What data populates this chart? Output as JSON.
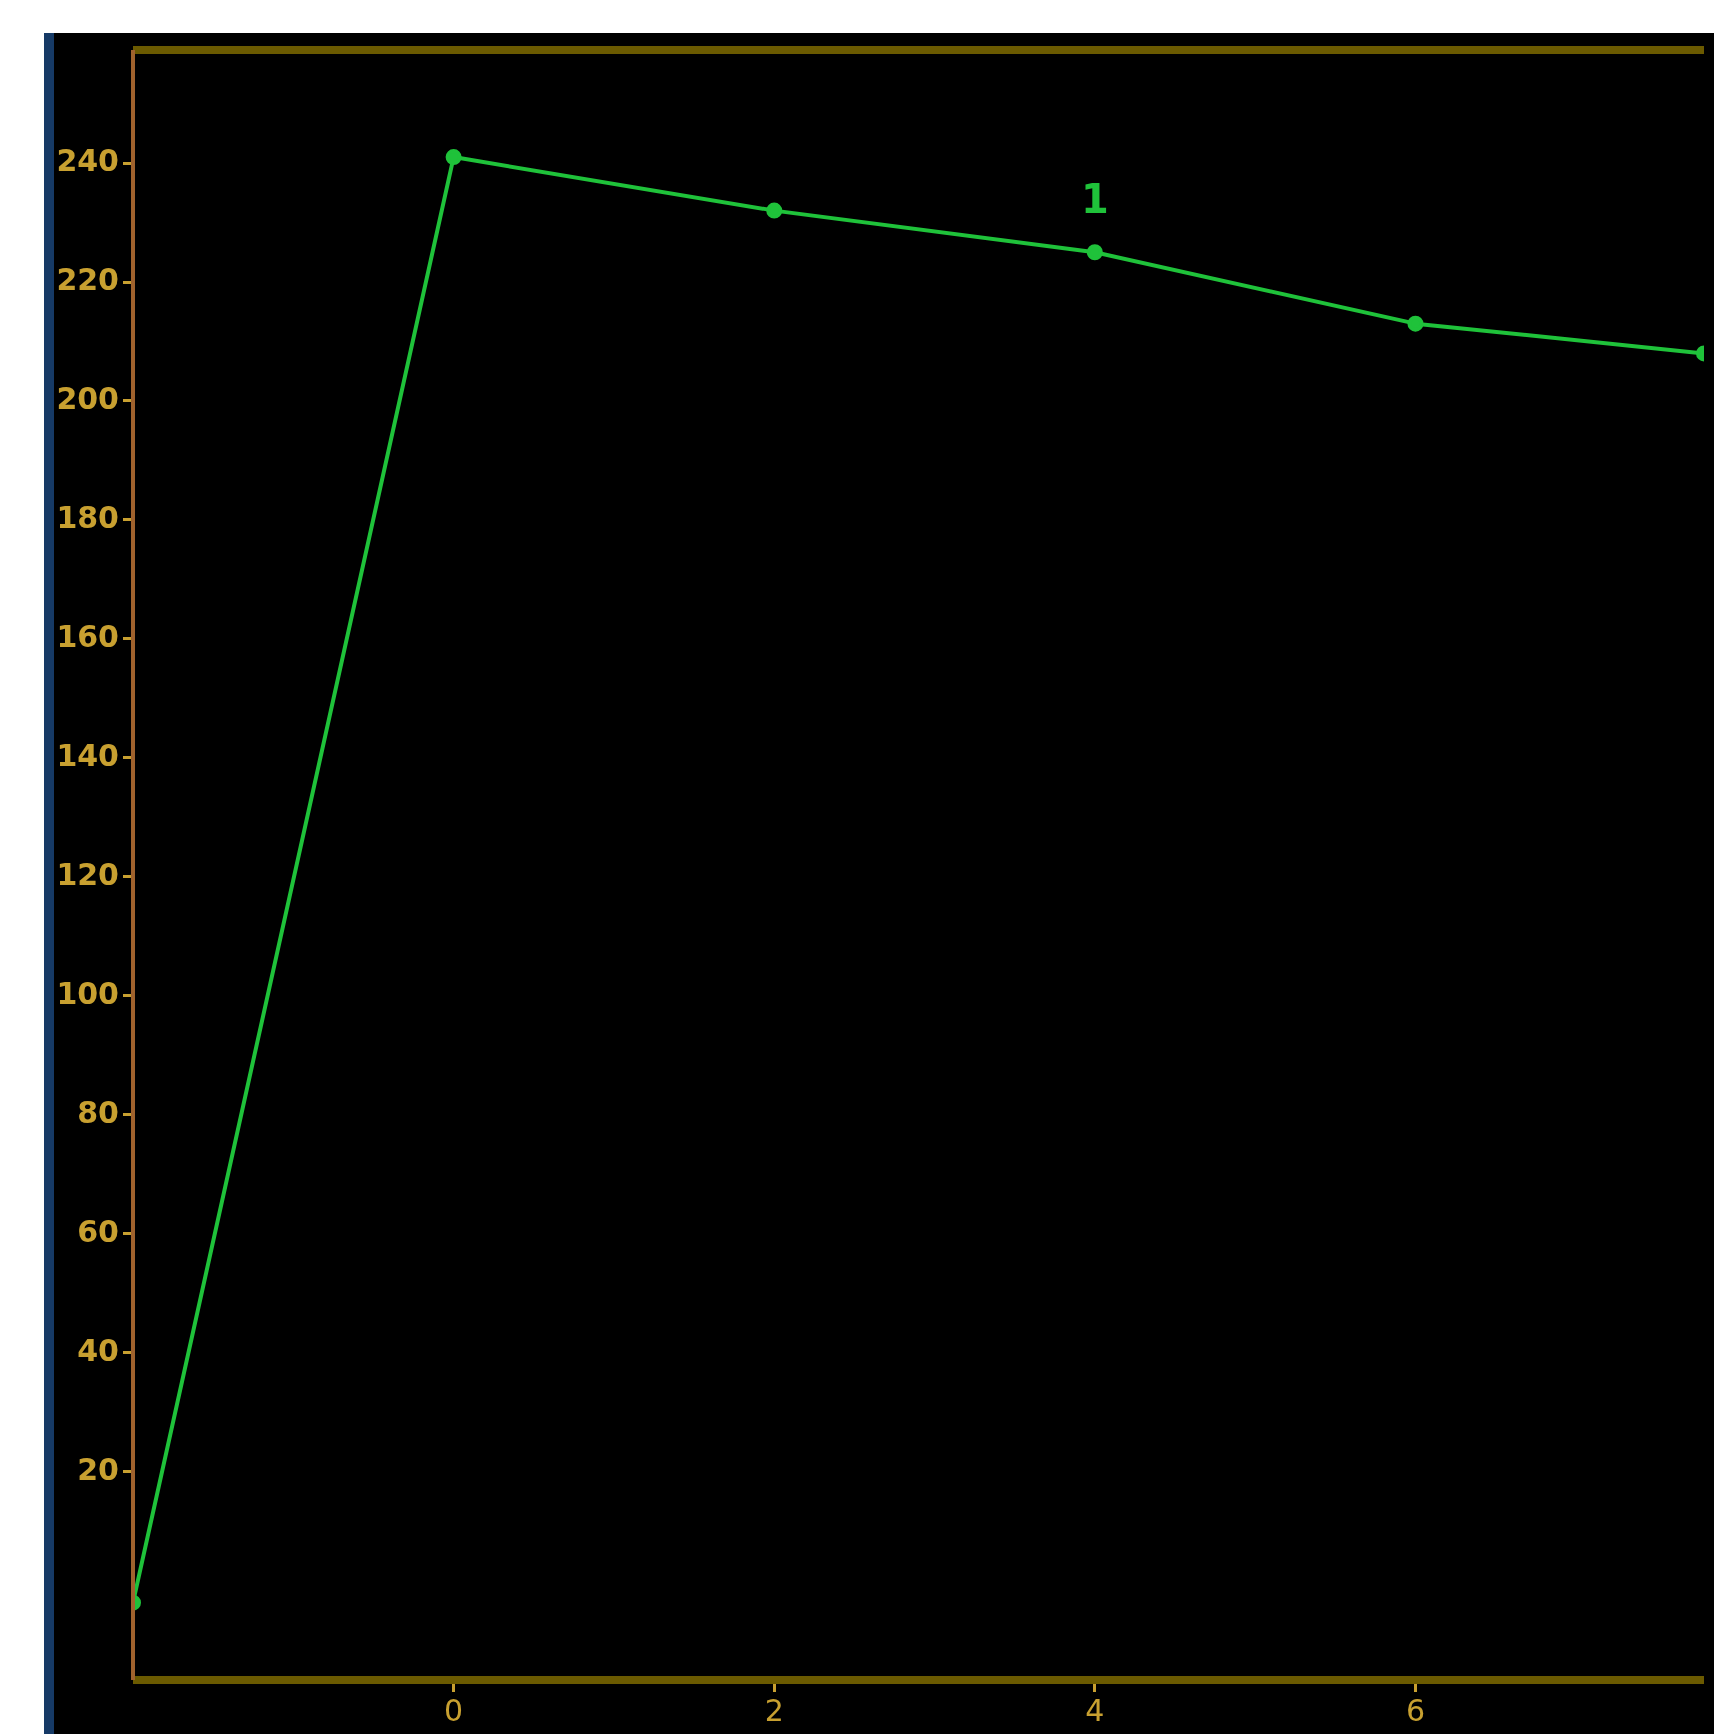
{
  "chart_data": {
    "type": "line",
    "x": [
      -2,
      0,
      2,
      4,
      6,
      7.8
    ],
    "series": [
      {
        "color": "#1fc23a",
        "values": [
          -2,
          241,
          232,
          225,
          213,
          208
        ]
      }
    ],
    "xlim": [
      -2,
      7.8
    ],
    "xticks": [
      0,
      2,
      4,
      6
    ],
    "ylim": [
      -15,
      259
    ],
    "yticks": [
      20,
      40,
      60,
      80,
      100,
      120,
      140,
      160,
      180,
      200,
      220,
      240
    ],
    "annotations": [
      {
        "text": "1",
        "x": 4,
        "y": 225
      }
    ],
    "marker": "circle",
    "legend": false
  }
}
